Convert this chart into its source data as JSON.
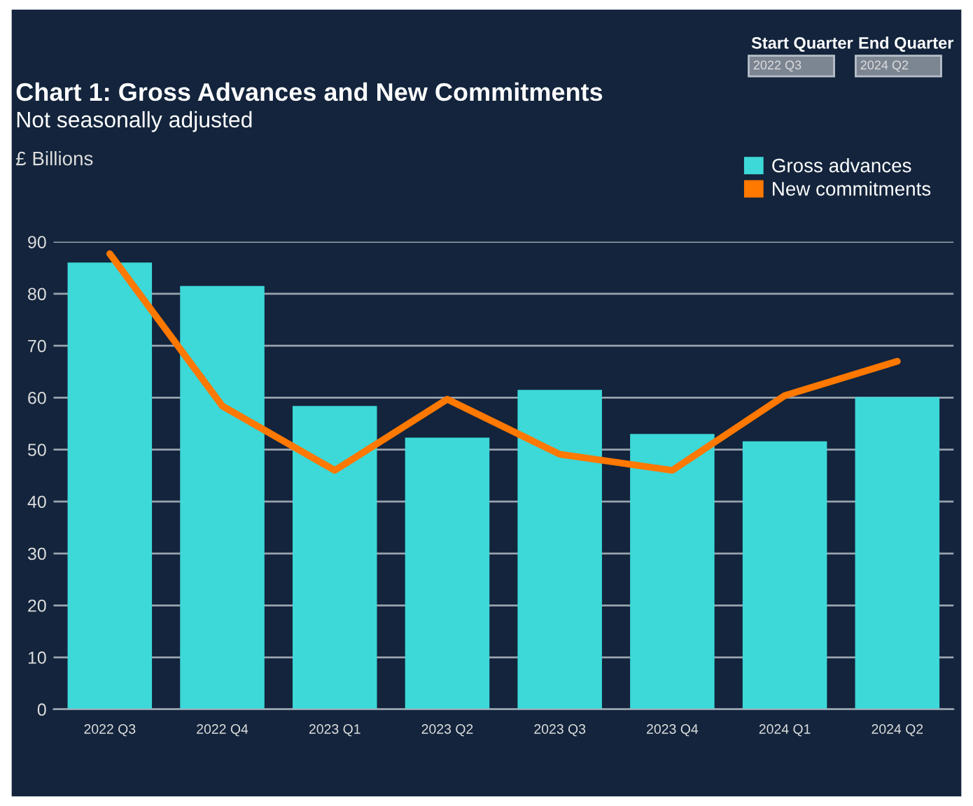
{
  "chart_data": {
    "type": "bar",
    "title": "Chart 1: Gross Advances and New Commitments",
    "subtitle": "Not seasonally adjusted",
    "ylabel": "£ Billions",
    "categories": [
      "2022 Q3",
      "2022 Q4",
      "2023 Q1",
      "2023 Q2",
      "2023 Q3",
      "2023 Q4",
      "2024 Q1",
      "2024 Q2"
    ],
    "series": [
      {
        "name": "Gross advances",
        "color": "#3dd8d8",
        "values": [
          86,
          81.5,
          58.4,
          52.3,
          61.5,
          53,
          51.6,
          60.1
        ]
      },
      {
        "name": "New commitments",
        "type": "line",
        "color": "#ff7800",
        "values": [
          87.7,
          58.4,
          46,
          59.7,
          49.1,
          46,
          60.4,
          67
        ]
      }
    ],
    "ylim": [
      0,
      90
    ],
    "yticks": [
      0,
      10,
      20,
      30,
      40,
      50,
      60,
      70,
      80,
      90
    ],
    "grid": "y",
    "legend": "top right",
    "annotations": [
      "Start Quarter",
      "2022 Q3",
      "End Quarter",
      "2024 Q2"
    ]
  }
}
